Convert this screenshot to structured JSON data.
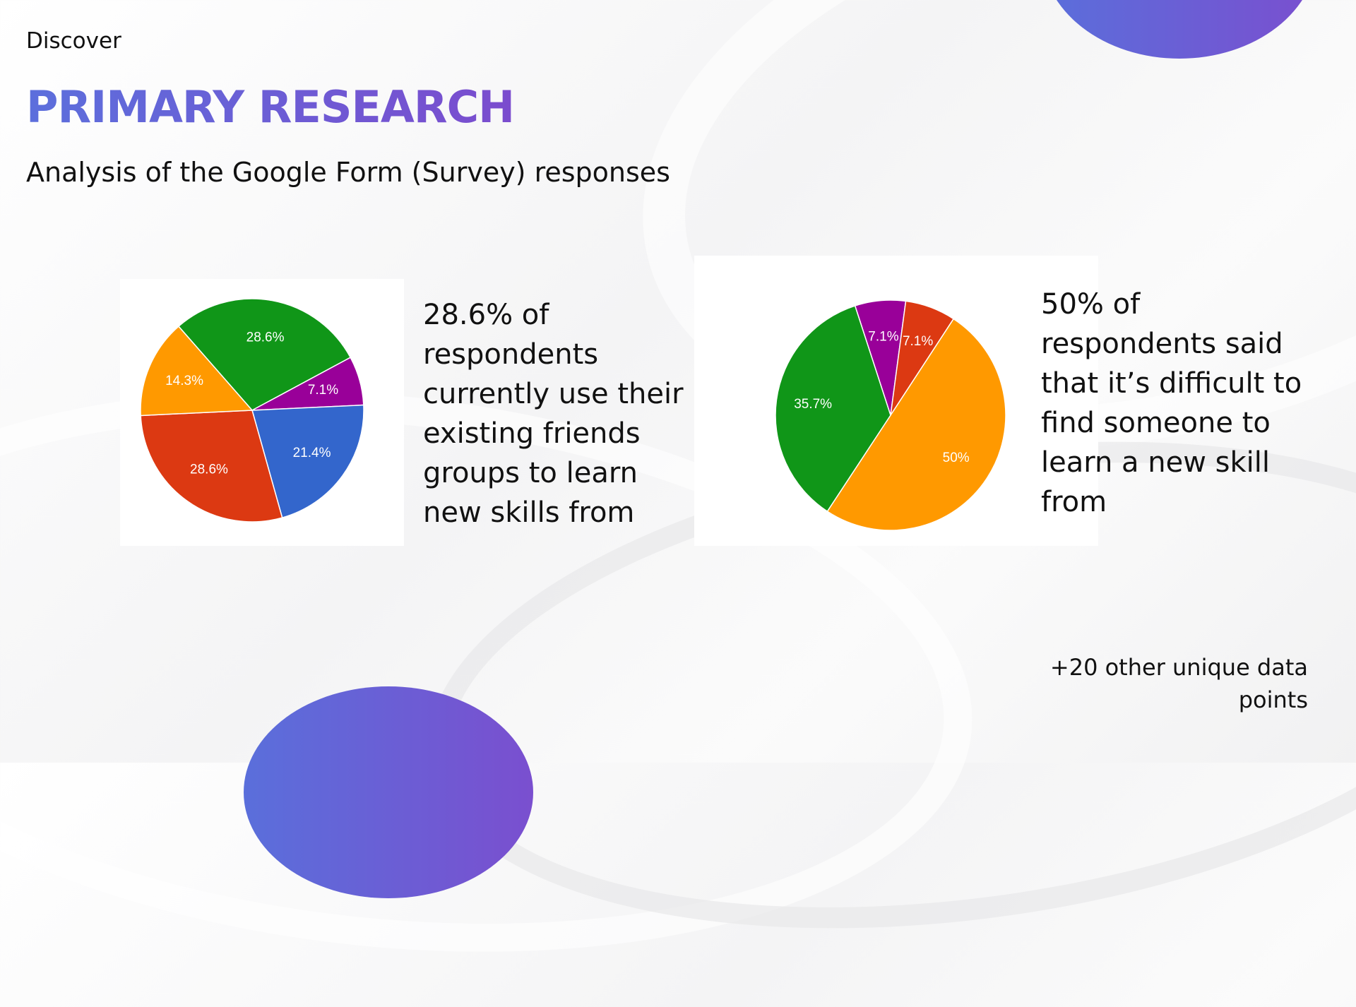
{
  "header": {
    "section": "Discover",
    "title": "PRIMARY RESEARCH",
    "subtitle": "Analysis of the Google Form (Survey) responses"
  },
  "chart_data": [
    {
      "type": "pie",
      "slices": [
        {
          "value": 28.6,
          "label": "28.6%",
          "color": "#109618"
        },
        {
          "value": 7.1,
          "label": "7.1%",
          "color": "#990099"
        },
        {
          "value": 21.4,
          "label": "21.4%",
          "color": "#3366cc"
        },
        {
          "value": 28.6,
          "label": "28.6%",
          "color": "#dc3912"
        },
        {
          "value": 14.3,
          "label": "14.3%",
          "color": "#ff9900"
        }
      ]
    },
    {
      "type": "pie",
      "slices": [
        {
          "value": 7.1,
          "label": "7.1%",
          "color": "#990099"
        },
        {
          "value": 7.1,
          "label": "7.1%",
          "color": "#dc3912"
        },
        {
          "value": 50,
          "label": "50%",
          "color": "#ff9900"
        },
        {
          "value": 35.7,
          "label": "35.7%",
          "color": "#109618"
        }
      ]
    }
  ],
  "captions": {
    "left": "28.6% of respondents currently use their existing friends groups to learn new skills from",
    "right": "50% of respondents said that it’s difficult to find someone to learn a new skill from"
  },
  "footer_note": "+20 other unique data points",
  "colors": {
    "accent_start": "#5c6fdc",
    "accent_end": "#7b4cce"
  }
}
